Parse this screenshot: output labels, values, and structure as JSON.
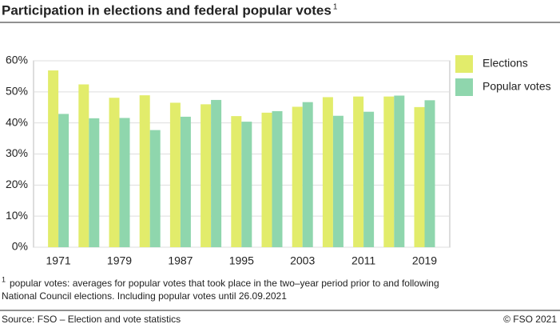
{
  "chart_data": {
    "type": "bar",
    "title": "Participation in elections and federal popular votes",
    "title_note_marker": "1",
    "categories": [
      "1971",
      null,
      "1979",
      null,
      "1987",
      null,
      "1995",
      null,
      "2003",
      null,
      "2011",
      null,
      "2019"
    ],
    "series": [
      {
        "name": "Elections",
        "color": "#e2ec6b",
        "values": [
          56.9,
          52.4,
          48.1,
          48.9,
          46.5,
          46.0,
          42.2,
          43.3,
          45.2,
          48.3,
          48.5,
          48.5,
          45.1
        ]
      },
      {
        "name": "Popular votes",
        "color": "#8fd6ad",
        "values": [
          42.9,
          41.5,
          41.6,
          37.7,
          42.0,
          47.4,
          40.4,
          43.8,
          46.7,
          42.3,
          43.6,
          48.8,
          47.3
        ]
      }
    ],
    "ylim": [
      0,
      60
    ],
    "yticks": [
      {
        "value": 0,
        "label": "0%"
      },
      {
        "value": 10,
        "label": "10%"
      },
      {
        "value": 20,
        "label": "20%"
      },
      {
        "value": 30,
        "label": "30%"
      },
      {
        "value": 40,
        "label": "40%"
      },
      {
        "value": 50,
        "label": "50%"
      },
      {
        "value": 60,
        "label": "60%"
      }
    ],
    "grid": true,
    "legend": "right",
    "footnote_marker": "1",
    "footnote": [
      "popular votes: averages for popular votes that took place in the two–year period prior to and following",
      "National Council elections. Including popular votes until 26.09.2021"
    ],
    "source": "Source: FSO – Election and vote statistics",
    "copyright": "© FSO 2021"
  }
}
